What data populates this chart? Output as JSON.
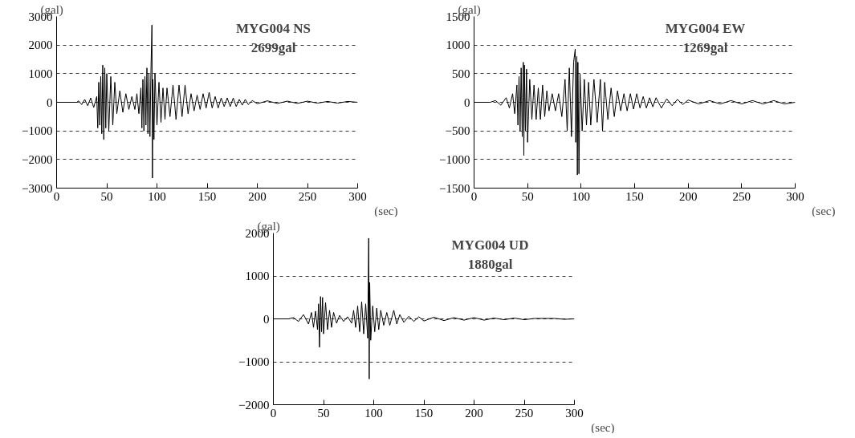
{
  "chart_data": [
    {
      "type": "line",
      "xlabel": "(sec)",
      "ylabel": "(gal)",
      "annotations": [
        "MYG004 NS",
        "2699gal"
      ],
      "xlim": [
        0,
        300
      ],
      "ylim": [
        -3000,
        3000
      ],
      "xticks": [
        0,
        50,
        100,
        150,
        200,
        250,
        300
      ],
      "yticks": [
        -3000,
        -2000,
        -1000,
        0,
        1000,
        2000,
        3000
      ],
      "grid": "y",
      "series": [
        {
          "color": "#000000",
          "x": [
            0,
            10,
            20,
            22,
            25,
            28,
            31,
            34,
            37,
            40,
            41,
            42,
            43,
            44,
            45,
            46,
            47,
            48,
            49,
            50,
            52,
            54,
            56,
            58,
            60,
            63,
            66,
            69,
            72,
            75,
            78,
            80,
            82,
            84,
            85,
            86,
            87,
            88,
            89,
            90,
            91,
            92,
            93,
            94,
            95,
            95.5,
            96,
            97,
            98,
            100,
            102,
            104,
            106,
            108,
            110,
            113,
            116,
            119,
            122,
            125,
            128,
            131,
            134,
            137,
            140,
            143,
            146,
            149,
            152,
            155,
            158,
            161,
            164,
            167,
            170,
            173,
            176,
            179,
            182,
            185,
            188,
            191,
            195,
            200,
            210,
            220,
            230,
            240,
            250,
            260,
            270,
            280,
            290,
            300
          ],
          "values": [
            0,
            0,
            0,
            50,
            -80,
            100,
            -120,
            150,
            -180,
            200,
            -900,
            700,
            -800,
            900,
            -1100,
            1300,
            -1300,
            1200,
            -900,
            1000,
            -1000,
            900,
            -800,
            700,
            -400,
            400,
            -350,
            300,
            -250,
            200,
            -250,
            300,
            -400,
            500,
            -900,
            800,
            -1000,
            900,
            -800,
            1200,
            -1100,
            1000,
            -1200,
            1100,
            2700,
            -2650,
            800,
            -1300,
            1000,
            -800,
            700,
            -700,
            500,
            -600,
            500,
            -500,
            600,
            -600,
            600,
            -500,
            600,
            -400,
            300,
            -300,
            250,
            -250,
            300,
            -200,
            350,
            -200,
            200,
            -200,
            150,
            -150,
            150,
            -150,
            150,
            -150,
            100,
            -100,
            100,
            -80,
            60,
            -50,
            50,
            -40,
            40,
            -40,
            40,
            -30,
            30,
            -30,
            30,
            0
          ]
        }
      ]
    },
    {
      "type": "line",
      "xlabel": "(sec)",
      "ylabel": "(gal)",
      "annotations": [
        "MYG004 EW",
        "1269gal"
      ],
      "xlim": [
        0,
        300
      ],
      "ylim": [
        -1500,
        1500
      ],
      "xticks": [
        0,
        50,
        100,
        150,
        200,
        250,
        300
      ],
      "yticks": [
        -1500,
        -1000,
        -500,
        0,
        500,
        1000,
        1500
      ],
      "grid": "y",
      "series": [
        {
          "color": "#000000",
          "x": [
            0,
            15,
            20,
            25,
            30,
            33,
            36,
            38,
            40,
            41,
            42,
            43,
            44,
            45,
            46,
            46.5,
            47,
            48,
            49,
            50,
            52,
            54,
            56,
            58,
            60,
            62,
            64,
            66,
            68,
            70,
            73,
            76,
            79,
            82,
            85,
            87,
            89,
            91,
            93,
            94.5,
            95,
            96,
            96.5,
            97,
            98,
            99,
            101,
            103,
            105,
            107,
            109,
            112,
            115,
            118,
            120,
            122,
            125,
            128,
            131,
            134,
            137,
            140,
            143,
            146,
            149,
            152,
            155,
            158,
            161,
            164,
            167,
            170,
            175,
            180,
            185,
            190,
            195,
            200,
            210,
            220,
            230,
            240,
            250,
            260,
            270,
            280,
            290,
            300
          ],
          "values": [
            0,
            0,
            30,
            -50,
            80,
            -100,
            150,
            -200,
            300,
            -400,
            450,
            -500,
            600,
            -600,
            700,
            -930,
            650,
            -500,
            580,
            -700,
            400,
            -300,
            300,
            -300,
            250,
            -300,
            300,
            -250,
            200,
            -150,
            150,
            -150,
            150,
            -250,
            400,
            -500,
            600,
            -600,
            700,
            930,
            -700,
            800,
            -1270,
            700,
            -1250,
            500,
            -500,
            400,
            -400,
            350,
            -400,
            400,
            -350,
            400,
            -500,
            350,
            -300,
            250,
            -250,
            200,
            -150,
            150,
            -150,
            150,
            -120,
            150,
            -100,
            100,
            -100,
            80,
            -80,
            80,
            -100,
            60,
            -60,
            50,
            -40,
            40,
            -30,
            30,
            -30,
            30,
            -30,
            30,
            -30,
            30,
            -30,
            0
          ]
        }
      ]
    },
    {
      "type": "line",
      "xlabel": "(sec)",
      "ylabel": "(gal)",
      "annotations": [
        "MYG004 UD",
        "1880gal"
      ],
      "xlim": [
        0,
        300
      ],
      "ylim": [
        -2000,
        2000
      ],
      "xticks": [
        0,
        50,
        100,
        150,
        200,
        250,
        300
      ],
      "yticks": [
        -2000,
        -1000,
        0,
        1000,
        2000
      ],
      "grid": "y",
      "series": [
        {
          "color": "#000000",
          "x": [
            0,
            15,
            20,
            25,
            30,
            35,
            38,
            40,
            42,
            44,
            45,
            46,
            47,
            48,
            49,
            50,
            52,
            54,
            56,
            58,
            60,
            63,
            66,
            70,
            74,
            78,
            80,
            82,
            84,
            86,
            88,
            90,
            92,
            94,
            95,
            95.5,
            96,
            97,
            99,
            101,
            103,
            105,
            107,
            110,
            113,
            116,
            120,
            123,
            126,
            130,
            135,
            140,
            145,
            150,
            160,
            170,
            180,
            190,
            200,
            210,
            220,
            230,
            240,
            250,
            260,
            280,
            290,
            300
          ],
          "values": [
            0,
            0,
            30,
            -60,
            100,
            -120,
            150,
            -200,
            180,
            -250,
            350,
            -660,
            520,
            -300,
            500,
            -350,
            380,
            -250,
            200,
            -200,
            150,
            -100,
            80,
            -60,
            50,
            -100,
            200,
            -200,
            300,
            -300,
            400,
            -350,
            350,
            -450,
            1880,
            -1400,
            850,
            -500,
            300,
            -300,
            250,
            -250,
            200,
            -150,
            150,
            -150,
            200,
            -120,
            100,
            -80,
            60,
            -60,
            50,
            -50,
            40,
            -40,
            30,
            -30,
            30,
            -30,
            20,
            -20,
            20,
            -20,
            10,
            10,
            -10,
            0
          ]
        }
      ]
    }
  ]
}
